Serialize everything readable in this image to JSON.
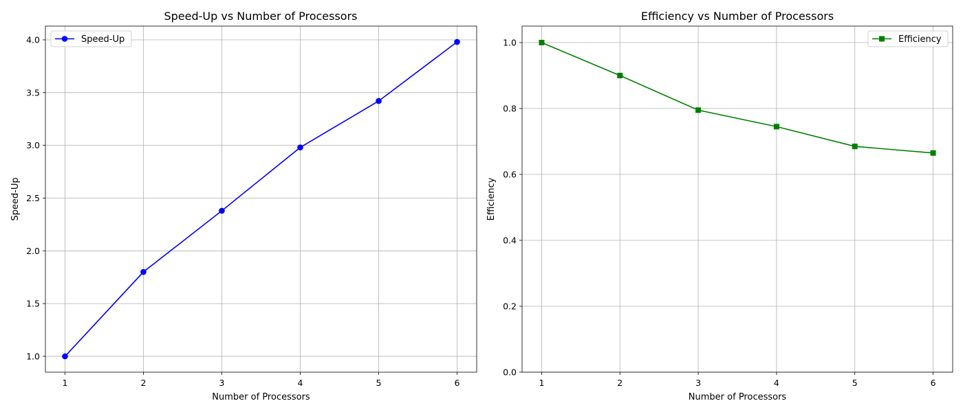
{
  "chart_data": [
    {
      "type": "line",
      "title": "Speed-Up vs Number of Processors",
      "xlabel": "Number of Processors",
      "ylabel": "Speed-Up",
      "x": [
        1,
        2,
        3,
        4,
        5,
        6
      ],
      "xticks": [
        "1",
        "2",
        "3",
        "4",
        "5",
        "6"
      ],
      "yticks": [
        "1.0",
        "1.5",
        "2.0",
        "2.5",
        "3.0",
        "3.5",
        "4.0"
      ],
      "ytick_values": [
        1.0,
        1.5,
        2.0,
        2.5,
        3.0,
        3.5,
        4.0
      ],
      "xlim": [
        0.75,
        6.25
      ],
      "ylim": [
        0.85,
        4.13
      ],
      "grid": true,
      "legend_position": "top-left",
      "series": [
        {
          "name": "Speed-Up",
          "values": [
            1.0,
            1.8,
            2.38,
            2.98,
            3.42,
            3.98
          ],
          "color": "#0000ff",
          "marker": "circle"
        }
      ]
    },
    {
      "type": "line",
      "title": "Efficiency vs Number of Processors",
      "xlabel": "Number of Processors",
      "ylabel": "Efficiency",
      "x": [
        1,
        2,
        3,
        4,
        5,
        6
      ],
      "xticks": [
        "1",
        "2",
        "3",
        "4",
        "5",
        "6"
      ],
      "yticks": [
        "0.0",
        "0.2",
        "0.4",
        "0.6",
        "0.8",
        "1.0"
      ],
      "ytick_values": [
        0.0,
        0.2,
        0.4,
        0.6,
        0.8,
        1.0
      ],
      "xlim": [
        0.75,
        6.25
      ],
      "ylim": [
        0.0,
        1.05
      ],
      "grid": true,
      "legend_position": "top-right",
      "series": [
        {
          "name": "Efficiency",
          "values": [
            1.0,
            0.9,
            0.795,
            0.745,
            0.685,
            0.665
          ],
          "color": "#008000",
          "marker": "square"
        }
      ]
    }
  ]
}
